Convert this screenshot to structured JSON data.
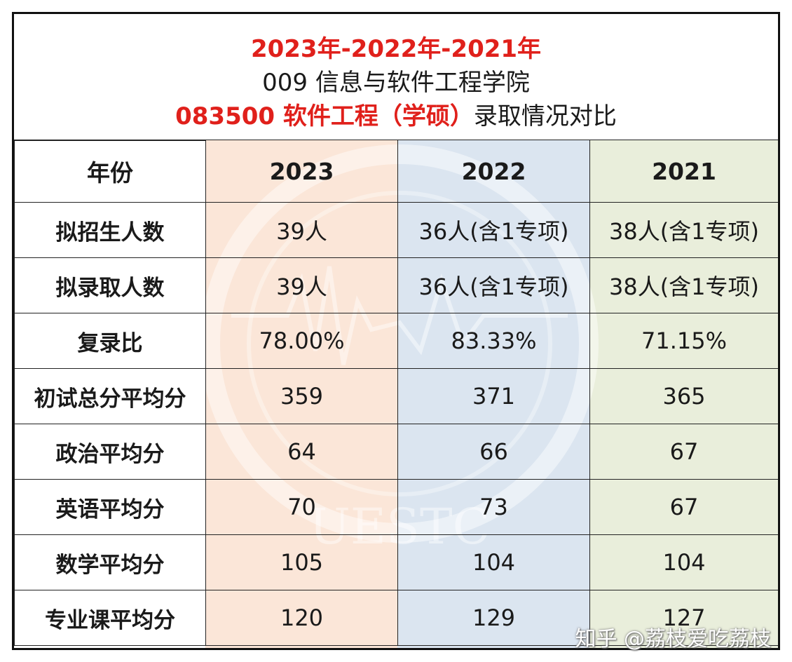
{
  "header": {
    "line1": "2023年-2022年-2021年",
    "line2": "009 信息与软件工程学院",
    "line3_red": "083500 软件工程（学硕）",
    "line3_black": "录取情况对比"
  },
  "table": {
    "columns": [
      "年份",
      "2023",
      "2022",
      "2021"
    ],
    "rows": [
      [
        "拟招生人数",
        "39人",
        "36人(含1专项)",
        "38人(含1专项)"
      ],
      [
        "拟录取人数",
        "39人",
        "36人(含1专项)",
        "38人(含1专项)"
      ],
      [
        "复录比",
        "78.00%",
        "83.33%",
        "71.15%"
      ],
      [
        "初试总分平均分",
        "359",
        "371",
        "365"
      ],
      [
        "政治平均分",
        "64",
        "66",
        "67"
      ],
      [
        "英语平均分",
        "70",
        "73",
        "67"
      ],
      [
        "数学平均分",
        "105",
        "104",
        "104"
      ],
      [
        "专业课平均分",
        "120",
        "129",
        "127"
      ]
    ]
  },
  "watermark": {
    "text": "UESTC"
  },
  "credit": "知乎 @荔枝爱吃荔枝",
  "colors": {
    "accent_red": "#e0201b",
    "col_2023": "#fbe6d8",
    "col_2022": "#dbe5f0",
    "col_2021": "#e9eedb"
  }
}
